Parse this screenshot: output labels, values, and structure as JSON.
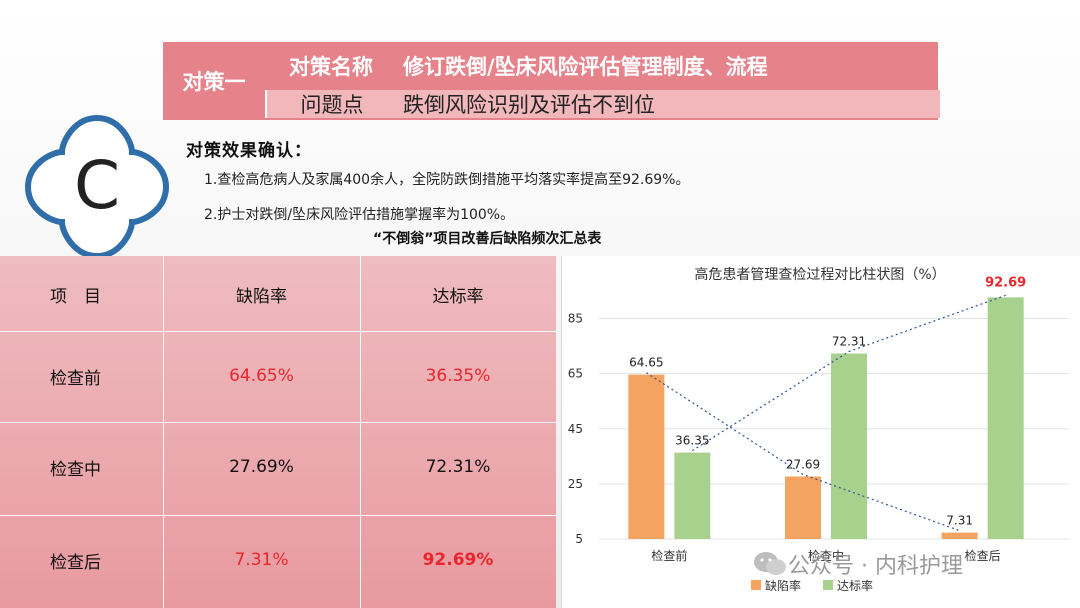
{
  "header": {
    "label": "对策一",
    "name_key": "对策名称",
    "name_value": "修订跌倒/坠床风险评估管理制度、流程",
    "problem_key": "问题点",
    "problem_value": "跌倒风险识别及评估不到位"
  },
  "logo": {
    "letter": "C"
  },
  "confirm": {
    "title": "对策效果确认：",
    "items": [
      "1.查检高危病人及家属400余人，全院防跌倒措施平均落实率提高至92.69%。",
      "2.护士对跌倒/坠床风险评估措施掌握率为100%。"
    ]
  },
  "table": {
    "title": "“不倒翁”项目改善后缺陷频次汇总表",
    "headers": [
      "项　目",
      "缺陷率",
      "达标率"
    ],
    "rows": [
      {
        "label": "检查前",
        "defect": "64.65%",
        "pass": "36.35%",
        "defect_color": "#e8262b",
        "pass_color": "#e8262b",
        "pass_bold": false
      },
      {
        "label": "检查中",
        "defect": "27.69%",
        "pass": "72.31%",
        "defect_color": "#111111",
        "pass_color": "#111111",
        "pass_bold": false
      },
      {
        "label": "检查后",
        "defect": "7.31%",
        "pass": "92.69%",
        "defect_color": "#e8262b",
        "pass_color": "#e8262b",
        "pass_bold": true
      }
    ]
  },
  "chart_data": {
    "type": "bar",
    "title": "高危患者管理查检过程对比柱状图（%）",
    "categories": [
      "检查前",
      "检查中",
      "检查后"
    ],
    "series": [
      {
        "name": "缺陷率",
        "values": [
          64.65,
          27.69,
          7.31
        ],
        "color": "#f4a460",
        "labels": [
          "64.65",
          "27.69",
          "7.31"
        ]
      },
      {
        "name": "达标率",
        "values": [
          36.35,
          72.31,
          92.69
        ],
        "color": "#a9d18e",
        "labels": [
          "36.35",
          "72.31",
          "92.69"
        ]
      }
    ],
    "ylim": [
      5,
      95
    ],
    "yticks": [
      5,
      25,
      45,
      65,
      85
    ],
    "highlight_color": "#e8262b",
    "trendline_color": "#2e5597",
    "grid": true,
    "legend": "bottom"
  },
  "watermark": {
    "text": "公众号 · 内科护理"
  }
}
